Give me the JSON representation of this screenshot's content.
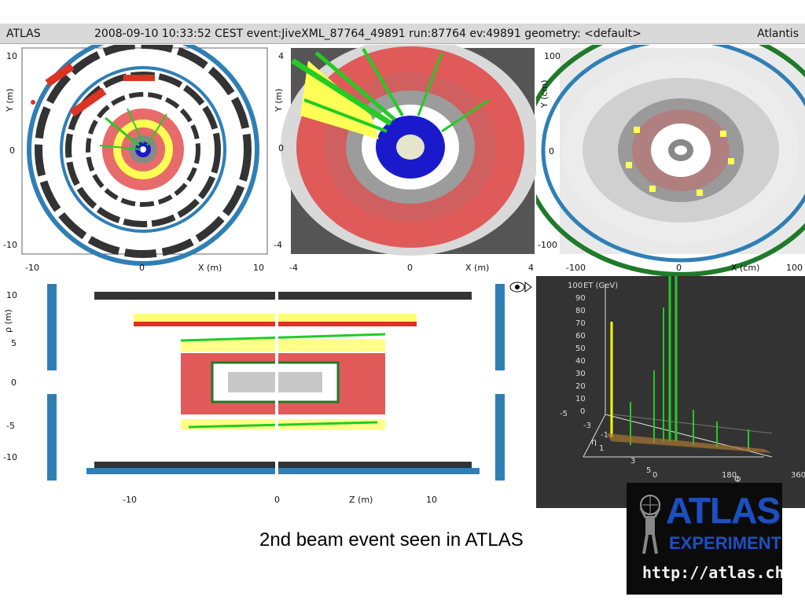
{
  "header": {
    "experiment": "ATLAS",
    "event_info": "2008-09-10 10:33:52 CEST event:JiveXML_87764_49891 run:87764 ev:49891  geometry: <default>",
    "app_name": "Atlantis"
  },
  "panels": {
    "xy_full": {
      "x_axis_label": "X (m)",
      "y_axis_label": "Y (m)",
      "x_ticks": [
        "-10",
        "0",
        "10"
      ],
      "y_ticks": [
        "10",
        "0",
        "-10"
      ]
    },
    "xy_zoom": {
      "x_axis_label": "X (m)",
      "y_axis_label": "Y (m)",
      "x_ticks": [
        "-4",
        "0",
        "4"
      ],
      "y_ticks": [
        "4",
        "0",
        "-4"
      ]
    },
    "xy_inner": {
      "x_axis_label": "X (cm)",
      "y_axis_label": "Y (cm)",
      "x_ticks": [
        "-100",
        "0",
        "100"
      ],
      "y_ticks": [
        "100",
        "0",
        "-100"
      ]
    },
    "rz_view": {
      "x_axis_label": "Z (m)",
      "y_axis_label": "ρ (m)",
      "x_ticks": [
        "-10",
        "0",
        "10"
      ],
      "y_ticks": [
        "10",
        "5",
        "0",
        "-5",
        "-10"
      ],
      "fisheye_icon": "fisheye-icon"
    },
    "lego": {
      "z_axis_label": "ET (GeV)",
      "z_ticks": [
        "100",
        "90",
        "80",
        "70",
        "60",
        "50",
        "40",
        "30",
        "20",
        "10",
        "0"
      ],
      "eta_label": "η",
      "eta_ticks": [
        "-5",
        "-3",
        "-1",
        "1",
        "3",
        "5"
      ],
      "phi_label": "Φ",
      "phi_ticks": [
        "0",
        "180",
        "360"
      ]
    }
  },
  "caption": "2nd beam event seen in ATLAS",
  "logo": {
    "title": "ATLAS",
    "subtitle": "EXPERIMENT",
    "url": "http://atlas.ch"
  },
  "colors": {
    "muon_chamber": "#333333",
    "muon_blue": "#2f7fb5",
    "lar_calo": "#e05a5a",
    "tile_calo": "#d95c5c",
    "energy_yellow": "#ffff00",
    "track_green": "#22cc22",
    "inner_blue": "#1a1acc",
    "grey": "#888888"
  }
}
